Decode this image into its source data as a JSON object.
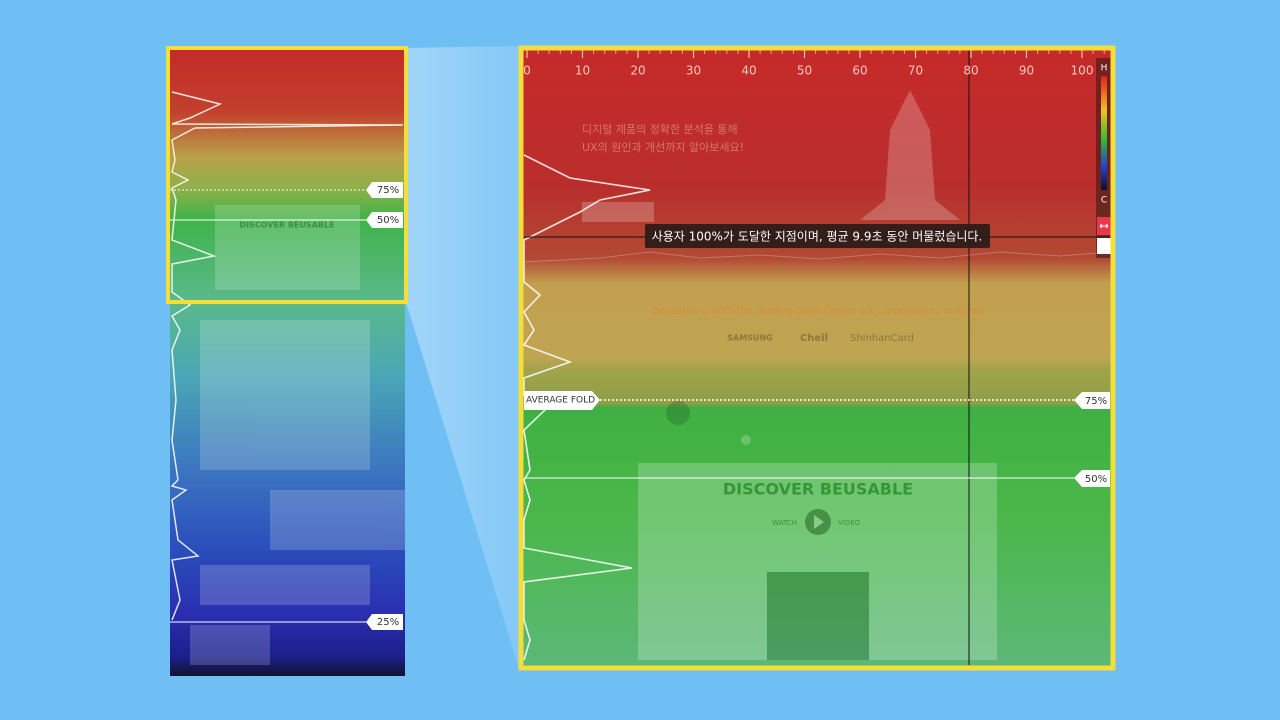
{
  "ruler": {
    "ticks": [
      0,
      10,
      20,
      30,
      40,
      50,
      60,
      70,
      80,
      90,
      100
    ]
  },
  "legend": {
    "high": "H",
    "low": "C"
  },
  "tooltip": "사용자 100%가 도달한 지점이며, 평균 9.9초 동안 머물렀습니다.",
  "markers": {
    "average_fold": "AVERAGE FOLD",
    "right": [
      "75%",
      "50%"
    ],
    "left": [
      "75%",
      "50%",
      "25%"
    ]
  },
  "background_page": {
    "headline": [
      "디지털 제품의 정확한 분석을 통해",
      "UX의 원인과 개선까지 알아보세요!"
    ],
    "partners_heading": "Beusable is with the leading Data-Driven UX corporations in Korea",
    "partners": [
      "SAMSUNG",
      "Cheil",
      "ShinhanCard"
    ],
    "cta_title": "DISCOVER BEUSABLE",
    "cta_watch": "WATCH",
    "cta_video": "VIDEO"
  }
}
